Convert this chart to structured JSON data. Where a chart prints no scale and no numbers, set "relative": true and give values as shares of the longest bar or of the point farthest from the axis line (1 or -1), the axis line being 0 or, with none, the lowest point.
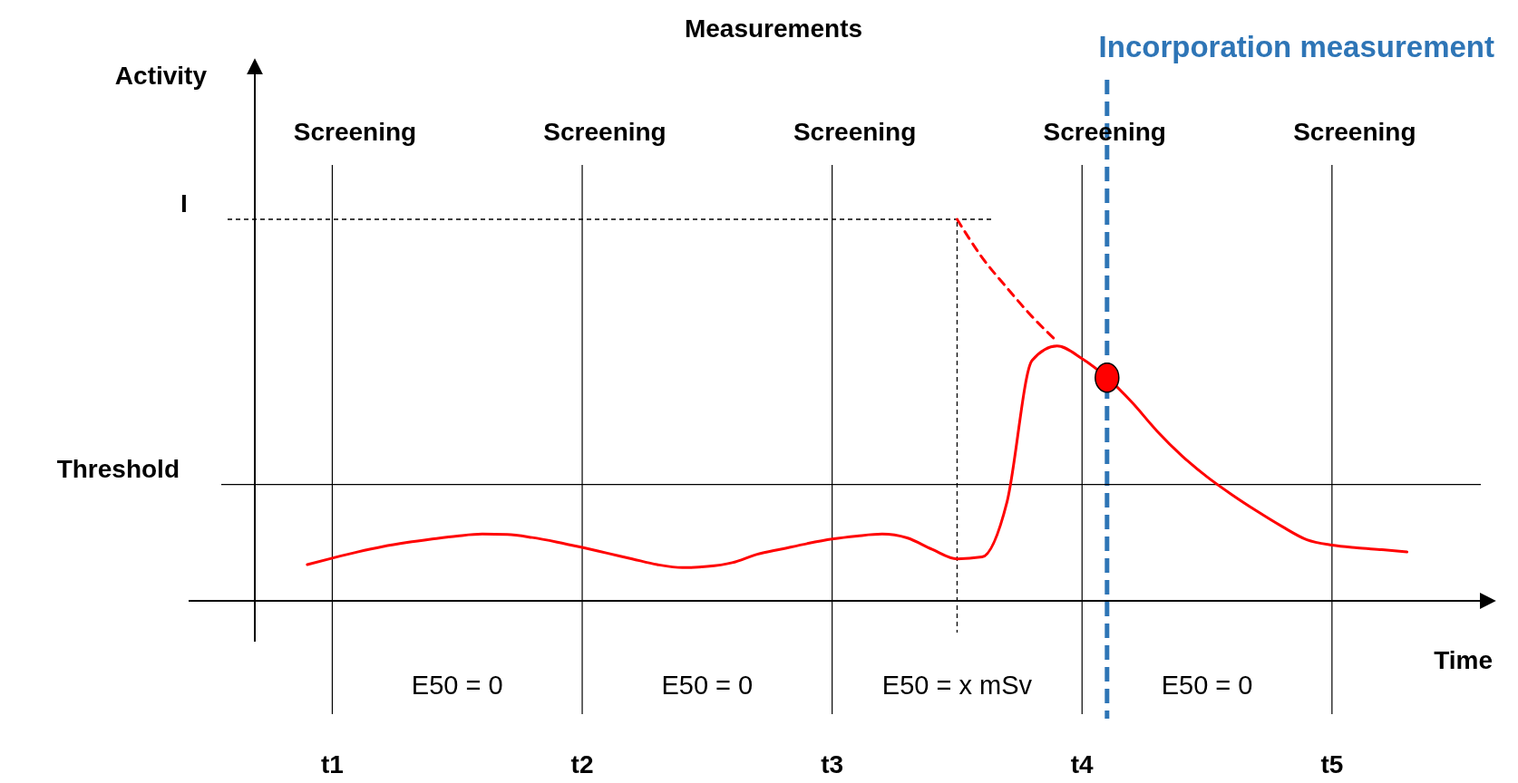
{
  "chart_data": {
    "type": "line",
    "title": "Measurements",
    "xlabel": "Time",
    "relative": true,
    "grid": "x",
    "categories": [
      null,
      null,
      null,
      "t1",
      null,
      null,
      null,
      null,
      null,
      null,
      null,
      null,
      null,
      "t2",
      null,
      null,
      null,
      null,
      null,
      null,
      null,
      null,
      null,
      "t3",
      null,
      null,
      null,
      null,
      null,
      null,
      null,
      null,
      null,
      "t4",
      null,
      null,
      null,
      null,
      null,
      null,
      null,
      null,
      null,
      "t5",
      null,
      null,
      null,
      null,
      null,
      null
    ],
    "series": [
      {
        "color": "#ff0000",
        "line_style": "solid",
        "values": [
          null,
          null,
          0.095,
          0.112,
          0.128,
          0.142,
          0.153,
          0.162,
          0.17,
          0.175,
          0.174,
          0.166,
          0.154,
          0.14,
          0.125,
          0.11,
          0.095,
          0.087,
          0.09,
          0.1,
          0.122,
          0.136,
          0.15,
          0.162,
          0.17,
          0.175,
          0.165,
          0.135,
          0.11,
          0.115,
          0.26,
          0.63,
          0.668,
          0.635,
          0.585,
          0.52,
          0.445,
          0.38,
          0.325,
          0.278,
          0.235,
          0.195,
          0.16,
          0.146,
          0.139,
          0.134,
          0.128,
          null,
          null,
          null
        ]
      },
      {
        "color": "#ff0000",
        "line_style": "dashed",
        "values": [
          null,
          null,
          null,
          null,
          null,
          null,
          null,
          null,
          null,
          null,
          null,
          null,
          null,
          null,
          null,
          null,
          null,
          null,
          null,
          null,
          null,
          null,
          null,
          null,
          null,
          null,
          null,
          null,
          1.0,
          0.9,
          0.82,
          0.745,
          0.68,
          null,
          null,
          null,
          null,
          null,
          null,
          null,
          null,
          null,
          null,
          null,
          null,
          null,
          null,
          null,
          null,
          null
        ]
      },
      {
        "type": "scatter",
        "color": "#ff0000",
        "marker": "circle",
        "values": [
          null,
          null,
          null,
          null,
          null,
          null,
          null,
          null,
          null,
          null,
          null,
          null,
          null,
          null,
          null,
          null,
          null,
          null,
          null,
          null,
          null,
          null,
          null,
          null,
          null,
          null,
          null,
          null,
          null,
          null,
          null,
          null,
          null,
          null,
          0.585,
          null,
          null,
          null,
          null,
          null,
          null,
          null,
          null,
          null,
          null,
          null,
          null,
          null,
          null,
          null
        ]
      }
    ],
    "ref_lines": [
      {
        "axis": "y",
        "value": 1.0,
        "label": "I",
        "color": "#000000",
        "line_style": "dashed"
      },
      {
        "axis": "y",
        "value": 0.305,
        "label": "Threshold",
        "color": "#000000",
        "line_style": "solid"
      }
    ],
    "annotations": [
      "Screening",
      "Screening",
      "Screening",
      "Screening",
      "Screening",
      "E50 = 0",
      "E50 = 0",
      "E50 = x mSv",
      "E50 = 0",
      "Incorporation measurement",
      "Activity"
    ]
  }
}
